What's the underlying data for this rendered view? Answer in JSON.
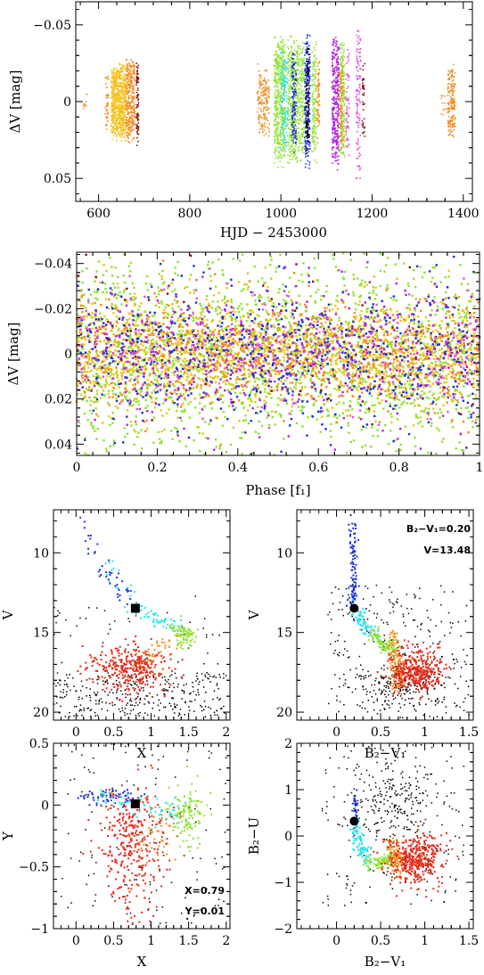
{
  "colors": {
    "black": "#000000",
    "blue": "#1a2fd6",
    "cyan": "#27e3f0",
    "green": "#8fe32e",
    "yellow": "#f5c21c",
    "orange": "#f38b1d",
    "red": "#e32a18",
    "purple": "#b21fe6",
    "magenta": "#e04fd8",
    "darkred": "#8b1010"
  },
  "chart_data": [
    {
      "id": "lightcurve",
      "type": "scatter",
      "xlabel": "HJD − 2453000",
      "ylabel": "ΔV [mag]",
      "xlim": [
        550,
        1420
      ],
      "ylim": [
        0.065,
        -0.065
      ],
      "y_inverted": true,
      "xticks": [
        600,
        800,
        1000,
        1200,
        1400
      ],
      "xtick_labels": [
        "600",
        "800",
        "1000",
        "1200",
        "1400"
      ],
      "yticks": [
        -0.05,
        0,
        0.05
      ],
      "ytick_labels": [
        "−0.05",
        "0",
        "0.05"
      ],
      "groups": [
        {
          "x": [
            615,
            622
          ],
          "amp": 0.02,
          "n": 40,
          "color": "orange"
        },
        {
          "x": [
            628,
            660
          ],
          "amp": 0.026,
          "n": 700,
          "color": "yellow"
        },
        {
          "x": [
            660,
            680
          ],
          "amp": 0.03,
          "n": 300,
          "color": "orange"
        },
        {
          "x": [
            683,
            688
          ],
          "amp": 0.03,
          "n": 80,
          "color": "darkred"
        },
        {
          "x": [
            560,
            575
          ],
          "amp": 0.006,
          "n": 8,
          "color": "orange"
        },
        {
          "x": [
            948,
            975
          ],
          "amp": 0.025,
          "n": 160,
          "color": "orange"
        },
        {
          "x": [
            985,
            1010
          ],
          "amp": 0.045,
          "n": 500,
          "color": "green"
        },
        {
          "x": [
            1000,
            1015
          ],
          "amp": 0.035,
          "n": 120,
          "color": "cyan"
        },
        {
          "x": [
            1015,
            1040
          ],
          "amp": 0.045,
          "n": 380,
          "color": "green"
        },
        {
          "x": [
            1024,
            1034
          ],
          "amp": 0.035,
          "n": 120,
          "color": "blue"
        },
        {
          "x": [
            1040,
            1052
          ],
          "amp": 0.04,
          "n": 150,
          "color": "green"
        },
        {
          "x": [
            1052,
            1064
          ],
          "amp": 0.045,
          "n": 250,
          "color": "blue"
        },
        {
          "x": [
            1055,
            1062
          ],
          "amp": 0.04,
          "n": 80,
          "color": "black"
        },
        {
          "x": [
            1068,
            1078
          ],
          "amp": 0.04,
          "n": 150,
          "color": "green"
        },
        {
          "x": [
            1080,
            1085
          ],
          "amp": 0.03,
          "n": 60,
          "color": "orange"
        },
        {
          "x": [
            1112,
            1128
          ],
          "amp": 0.045,
          "n": 320,
          "color": "purple"
        },
        {
          "x": [
            1130,
            1140
          ],
          "amp": 0.045,
          "n": 200,
          "color": "green"
        },
        {
          "x": [
            1128,
            1136
          ],
          "amp": 0.035,
          "n": 80,
          "color": "orange"
        },
        {
          "x": [
            1142,
            1150
          ],
          "amp": 0.04,
          "n": 60,
          "color": "magenta"
        },
        {
          "x": [
            1165,
            1175
          ],
          "amp": 0.055,
          "n": 110,
          "color": "magenta"
        },
        {
          "x": [
            1178,
            1184
          ],
          "amp": 0.03,
          "n": 40,
          "color": "darkred"
        },
        {
          "x": [
            1365,
            1382
          ],
          "amp": 0.025,
          "n": 160,
          "color": "orange"
        },
        {
          "x": [
            1350,
            1360
          ],
          "amp": 0.01,
          "n": 10,
          "color": "orange"
        }
      ]
    },
    {
      "id": "phase",
      "type": "scatter",
      "xlabel": "Phase [f₁]",
      "ylabel": "ΔV [mag]",
      "xlim": [
        0,
        1
      ],
      "ylim": [
        0.045,
        -0.045
      ],
      "y_inverted": true,
      "xticks": [
        0,
        0.2,
        0.4,
        0.6,
        0.8,
        1
      ],
      "xtick_labels": [
        "0",
        "0.2",
        "0.4",
        "0.6",
        "0.8",
        "1"
      ],
      "yticks": [
        -0.04,
        -0.02,
        0,
        0.02,
        0.04
      ],
      "ytick_labels": [
        "−0.04",
        "−0.02",
        "0",
        "0.02",
        "0.04"
      ],
      "groups": [
        {
          "sigma": 0.022,
          "n": 1800,
          "color": "green"
        },
        {
          "sigma": 0.012,
          "n": 1400,
          "color": "yellow"
        },
        {
          "sigma": 0.012,
          "n": 900,
          "color": "orange"
        },
        {
          "sigma": 0.015,
          "n": 700,
          "color": "blue"
        },
        {
          "sigma": 0.015,
          "n": 450,
          "color": "purple"
        },
        {
          "sigma": 0.015,
          "n": 250,
          "color": "magenta"
        },
        {
          "sigma": 0.02,
          "n": 60,
          "color": "darkred"
        }
      ]
    },
    {
      "id": "cmd-vx",
      "type": "scatter",
      "xlabel": "X",
      "ylabel": "V",
      "xlim": [
        -0.3,
        2.05
      ],
      "ylim": [
        20.5,
        7.3
      ],
      "y_inverted": true,
      "xticks": [
        0,
        0.5,
        1,
        1.5,
        2
      ],
      "xtick_labels": [
        "0",
        "0.5",
        "1",
        "1.5",
        "2"
      ],
      "yticks": [
        10,
        15,
        20
      ],
      "ytick_labels": [
        "10",
        "15",
        "20"
      ],
      "star": {
        "x": 0.79,
        "y": 13.48
      }
    },
    {
      "id": "cmd-vbv",
      "type": "scatter",
      "xlabel": "B₂−V₁",
      "ylabel": "V",
      "xlim": [
        -0.45,
        1.55
      ],
      "ylim": [
        20.5,
        7.3
      ],
      "y_inverted": true,
      "xticks": [
        0,
        0.5,
        1,
        1.5
      ],
      "xtick_labels": [
        "0",
        "0.5",
        "1",
        "1.5"
      ],
      "yticks": [
        10,
        15,
        20
      ],
      "ytick_labels": [
        "10",
        "15",
        "20"
      ],
      "star": {
        "x": 0.2,
        "y": 13.48
      },
      "annotations": [
        "B₂−V₁=0.20",
        "V=13.48"
      ]
    },
    {
      "id": "ccd-yx",
      "type": "scatter",
      "xlabel": "X",
      "ylabel": "Y",
      "xlim": [
        -0.3,
        2.05
      ],
      "ylim": [
        -1,
        0.5
      ],
      "xticks": [
        0,
        0.5,
        1,
        1.5,
        2
      ],
      "xtick_labels": [
        "0",
        "0.5",
        "1",
        "1.5",
        "2"
      ],
      "yticks": [
        -1,
        -0.5,
        0,
        0.5
      ],
      "ytick_labels": [
        "−1",
        "−0.5",
        "0",
        "0.5"
      ],
      "star": {
        "x": 0.79,
        "y": 0.01
      },
      "annotations": [
        "X=0.79",
        "Y=0.01"
      ]
    },
    {
      "id": "ccd-bu",
      "type": "scatter",
      "xlabel": "B₂−V₁",
      "ylabel": "B₂−U",
      "xlim": [
        -0.45,
        1.55
      ],
      "ylim": [
        -2,
        2
      ],
      "xticks": [
        0,
        0.5,
        1,
        1.5
      ],
      "xtick_labels": [
        "0",
        "0.5",
        "1",
        "1.5"
      ],
      "yticks": [
        -2,
        -1,
        0,
        1,
        2
      ],
      "ytick_labels": [
        "−2",
        "−1",
        "0",
        "1",
        "2"
      ],
      "star": {
        "x": 0.2,
        "y": 0.32
      }
    }
  ]
}
